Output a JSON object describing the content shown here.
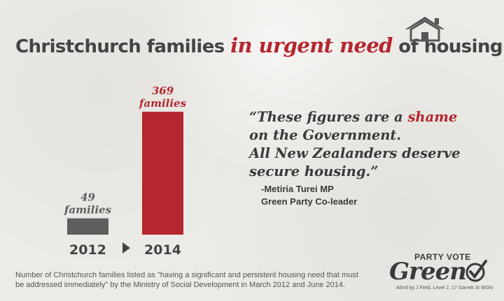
{
  "title": {
    "part1": "Christchurch families",
    "highlight": "in urgent need",
    "part2": "of housing"
  },
  "chart_data": {
    "type": "bar",
    "categories": [
      "2012",
      "2014"
    ],
    "values": [
      49,
      369
    ],
    "data_labels": [
      {
        "value": "49",
        "unit": "families"
      },
      {
        "value": "369",
        "unit": "families"
      }
    ],
    "colors": [
      "#5e5e5e",
      "#b5262e"
    ],
    "ylim": [
      0,
      369
    ],
    "grid": false
  },
  "quote": {
    "line1_start": "“These figures are a ",
    "line1_highlight": "shame",
    "line2": "on the Government.",
    "line3": "All New Zealanders deserve",
    "line4": "secure housing.”",
    "author": "-Metiria Turei MP",
    "role": "Green Party Co-leader"
  },
  "footnote": "Number of Christchurch families listed as \"having a significant and persistent housing need that must be addressed immediately\" by the Ministry of Social Development in March 2012 and June 2014.",
  "logo": {
    "tagline": "PARTY VOTE",
    "name": "Green",
    "authorisation": "Athrd by J Field, Level 2, 17 Garrett St WGN"
  },
  "icons": [
    "house-icon",
    "arrow-right-icon",
    "checkmark-icon"
  ],
  "colors": {
    "accent": "#b5262e",
    "text": "#3d3d3d",
    "bar_grey": "#5e5e5e"
  }
}
